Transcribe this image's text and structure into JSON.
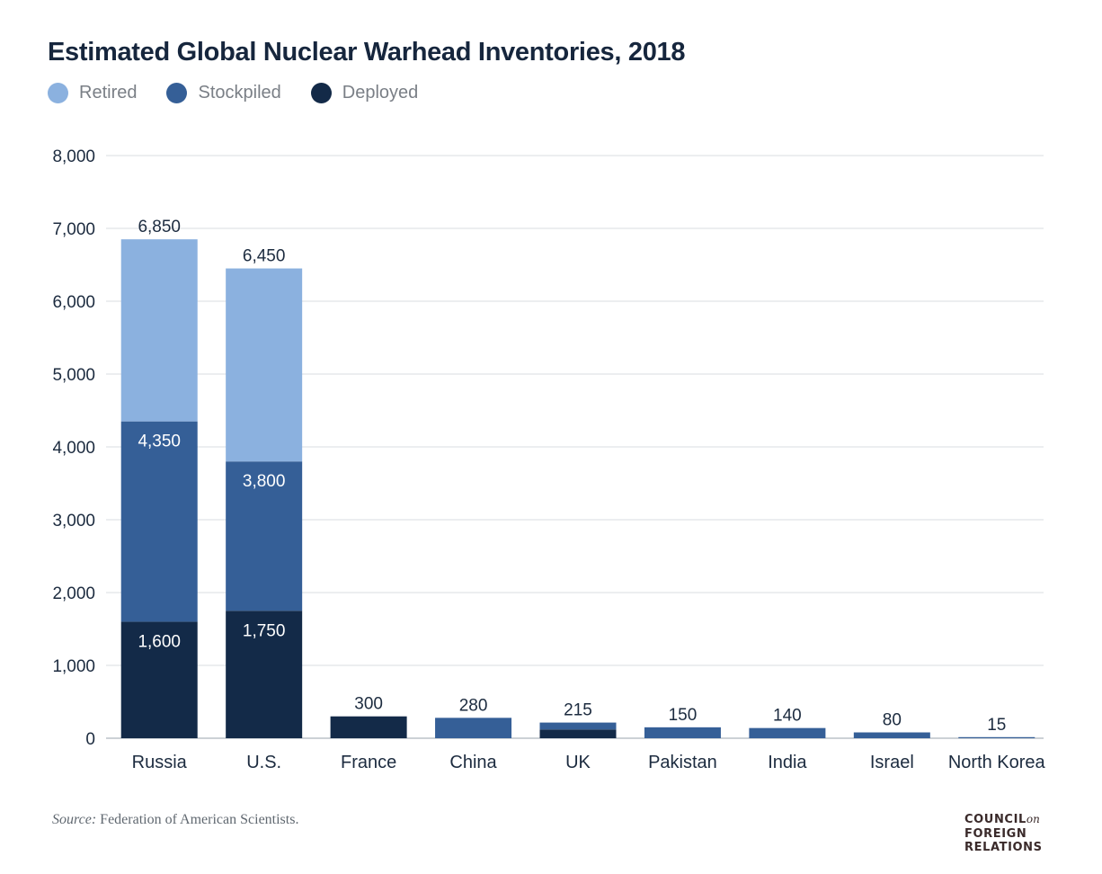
{
  "chart_data": {
    "type": "bar",
    "stacked": true,
    "title": "Estimated Global Nuclear Warhead Inventories, 2018",
    "categories": [
      "Russia",
      "U.S.",
      "France",
      "China",
      "UK",
      "Pakistan",
      "India",
      "Israel",
      "North Korea"
    ],
    "series": [
      {
        "name": "Deployed",
        "color": "#132a48",
        "values": [
          1600,
          1750,
          300,
          0,
          120,
          0,
          0,
          0,
          0
        ]
      },
      {
        "name": "Stockpiled",
        "color": "#355f97",
        "values": [
          2750,
          2050,
          0,
          280,
          95,
          150,
          140,
          80,
          15
        ]
      },
      {
        "name": "Retired",
        "color": "#8bb1df",
        "values": [
          2500,
          2650,
          0,
          0,
          0,
          0,
          0,
          0,
          0
        ]
      }
    ],
    "legend_order": [
      "Retired",
      "Stockpiled",
      "Deployed"
    ],
    "legend_position": "top-left",
    "total_labels": [
      "6,850",
      "6,450",
      "300",
      "280",
      "215",
      "150",
      "140",
      "80",
      "15"
    ],
    "inner_labels": [
      {
        "category": "Russia",
        "series": "Stockpiled",
        "text": "4,350"
      },
      {
        "category": "Russia",
        "series": "Deployed",
        "text": "1,600"
      },
      {
        "category": "U.S.",
        "series": "Stockpiled",
        "text": "3,800"
      },
      {
        "category": "U.S.",
        "series": "Deployed",
        "text": "1,750"
      }
    ],
    "ylim": [
      0,
      8000
    ],
    "yticks": [
      0,
      1000,
      2000,
      3000,
      4000,
      5000,
      6000,
      7000,
      8000
    ],
    "ytick_labels": [
      "0",
      "1,000",
      "2,000",
      "3,000",
      "4,000",
      "5,000",
      "6,000",
      "7,000",
      "8,000"
    ],
    "grid": true,
    "xlabel": "",
    "ylabel": ""
  },
  "source": {
    "prefix": "Source:",
    "text": " Federation of American Scientists."
  },
  "logo": {
    "line1": "COUNCIL",
    "line1_suffix": "on",
    "line2": "FOREIGN",
    "line3": "RELATIONS"
  }
}
